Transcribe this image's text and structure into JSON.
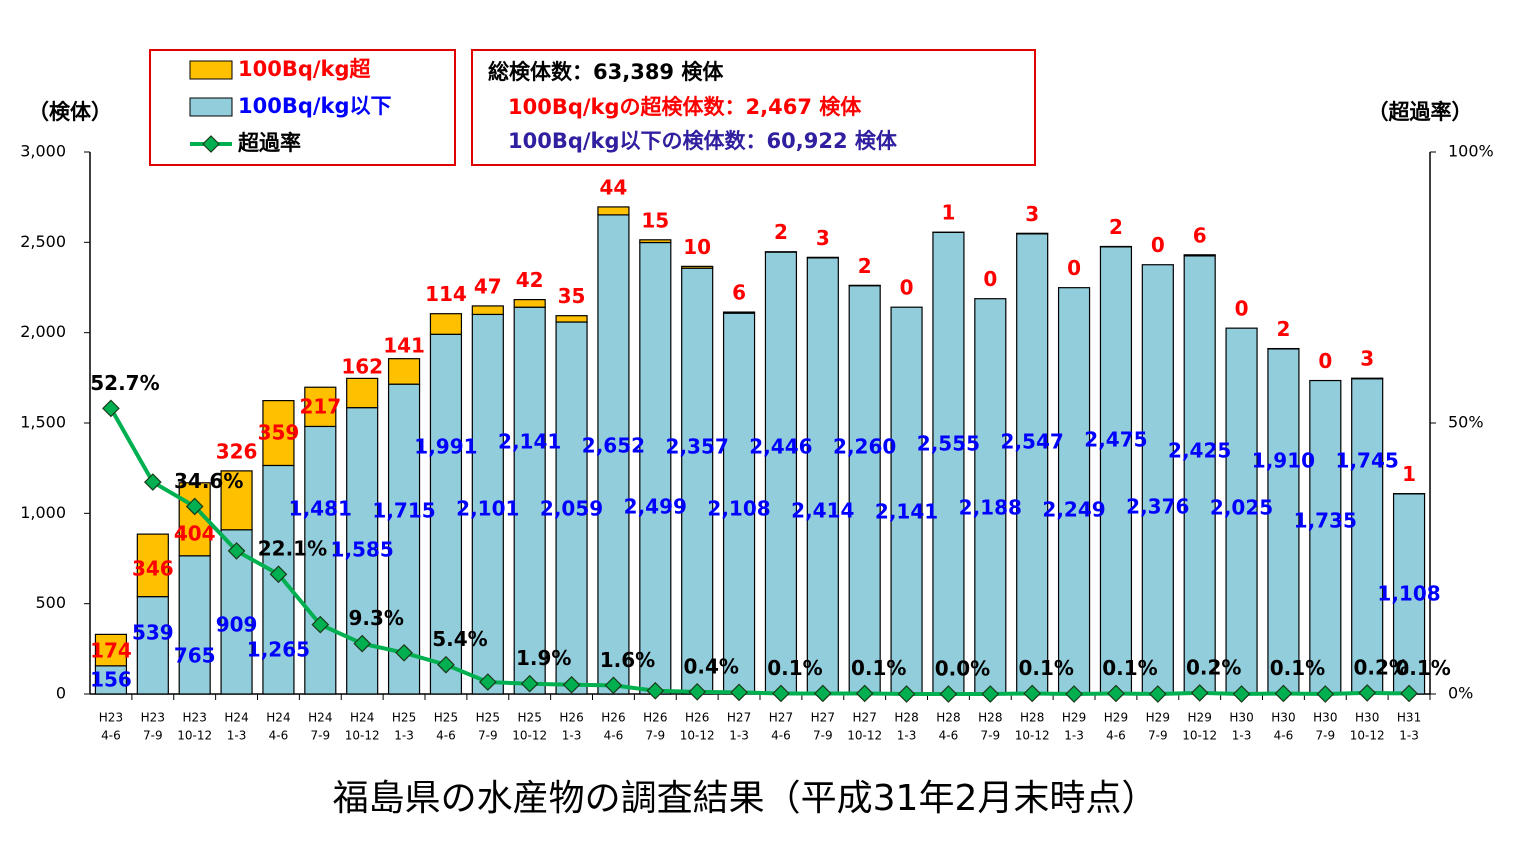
{
  "chart_data": {
    "type": "bar",
    "stacked": true,
    "title": "福島県の水産物の調査結果（平成31年2月末時点）",
    "y_label": "（検体）",
    "y2_label": "（超過率）",
    "summary": [
      "総検体数：63,389 検体",
      "100Bq/kgの超検体数：2,467 検体",
      "100Bq/kg以下の検体数：60,922 検体"
    ],
    "categories": [
      [
        "H23",
        "4-6"
      ],
      [
        "H23",
        "7-9"
      ],
      [
        "H23",
        "10-12"
      ],
      [
        "H24",
        "1-3"
      ],
      [
        "H24",
        "4-6"
      ],
      [
        "H24",
        "7-9"
      ],
      [
        "H24",
        "10-12"
      ],
      [
        "H25",
        "1-3"
      ],
      [
        "H25",
        "4-6"
      ],
      [
        "H25",
        "7-9"
      ],
      [
        "H25",
        "10-12"
      ],
      [
        "H26",
        "1-3"
      ],
      [
        "H26",
        "4-6"
      ],
      [
        "H26",
        "7-9"
      ],
      [
        "H26",
        "10-12"
      ],
      [
        "H27",
        "1-3"
      ],
      [
        "H27",
        "4-6"
      ],
      [
        "H27",
        "7-9"
      ],
      [
        "H27",
        "10-12"
      ],
      [
        "H28",
        "1-3"
      ],
      [
        "H28",
        "4-6"
      ],
      [
        "H28",
        "7-9"
      ],
      [
        "H28",
        "10-12"
      ],
      [
        "H29",
        "1-3"
      ],
      [
        "H29",
        "4-6"
      ],
      [
        "H29",
        "7-9"
      ],
      [
        "H29",
        "10-12"
      ],
      [
        "H30",
        "1-3"
      ],
      [
        "H30",
        "4-6"
      ],
      [
        "H30",
        "7-9"
      ],
      [
        "H30",
        "10-12"
      ],
      [
        "H31",
        "1-3"
      ]
    ],
    "series": [
      {
        "name": "100Bq/kg以下",
        "color": "#92cddc",
        "label_color": "#0000ff",
        "values": [
          156,
          539,
          765,
          909,
          1265,
          1481,
          1585,
          1715,
          1991,
          2101,
          2141,
          2059,
          2652,
          2499,
          2357,
          2108,
          2446,
          2414,
          2260,
          2141,
          2555,
          2188,
          2547,
          2249,
          2475,
          2376,
          2425,
          2025,
          1910,
          1735,
          1745,
          1108
        ],
        "value_labels": [
          "156",
          "539",
          "765",
          "909",
          "1,265",
          "1,481",
          "1,585",
          "1,715",
          "1,991",
          "2,101",
          "2,141",
          "2,059",
          "2,652",
          "2,499",
          "2,357",
          "2,108",
          "2,446",
          "2,414",
          "2,260",
          "2,141",
          "2,555",
          "2,188",
          "2,547",
          "2,249",
          "2,475",
          "2,376",
          "2,425",
          "2,025",
          "1,910",
          "1,735",
          "1,745",
          "1,108"
        ]
      },
      {
        "name": "100Bq/kg超",
        "color": "#ffc000",
        "label_color": "#ff0000",
        "values": [
          174,
          346,
          404,
          326,
          359,
          217,
          162,
          141,
          114,
          47,
          42,
          35,
          44,
          15,
          10,
          6,
          2,
          3,
          2,
          0,
          1,
          0,
          3,
          0,
          2,
          0,
          6,
          0,
          2,
          0,
          3,
          1
        ]
      },
      {
        "name": "超過率",
        "type": "line",
        "axis": "y2",
        "color": "#00b050",
        "label_color": "#000000",
        "values": [
          52.7,
          39.1,
          34.6,
          26.4,
          22.1,
          12.8,
          9.3,
          7.6,
          5.4,
          2.2,
          1.9,
          1.7,
          1.6,
          0.6,
          0.4,
          0.3,
          0.1,
          0.1,
          0.1,
          0,
          0.0,
          0,
          0.1,
          0,
          0.1,
          0,
          0.2,
          0,
          0.1,
          0,
          0.2,
          0.1
        ],
        "value_labels": [
          "52.7%",
          null,
          "34.6%",
          null,
          "22.1%",
          null,
          "9.3%",
          null,
          "5.4%",
          null,
          "1.9%",
          null,
          "1.6%",
          null,
          "0.4%",
          null,
          "0.1%",
          null,
          "0.1%",
          null,
          "0.0%",
          null,
          "0.1%",
          null,
          "0.1%",
          null,
          "0.2%",
          null,
          "0.1%",
          null,
          "0.2%",
          "0.1%"
        ]
      }
    ],
    "ylim": [
      0,
      3000
    ],
    "yticks": [
      0,
      500,
      {
        "value": 1000,
        "label": "1,000"
      },
      {
        "value": 1500,
        "label": "1,500"
      },
      {
        "value": 2000,
        "label": "2,000"
      },
      {
        "value": 2500,
        "label": "2,500"
      },
      {
        "value": 3000,
        "label": "3,000"
      }
    ],
    "y2lim": [
      0,
      100
    ],
    "y2ticks": [
      {
        "value": 0,
        "label": "0%"
      },
      {
        "value": 50,
        "label": "50%"
      },
      {
        "value": 100,
        "label": "100%"
      }
    ],
    "grid": false
  }
}
